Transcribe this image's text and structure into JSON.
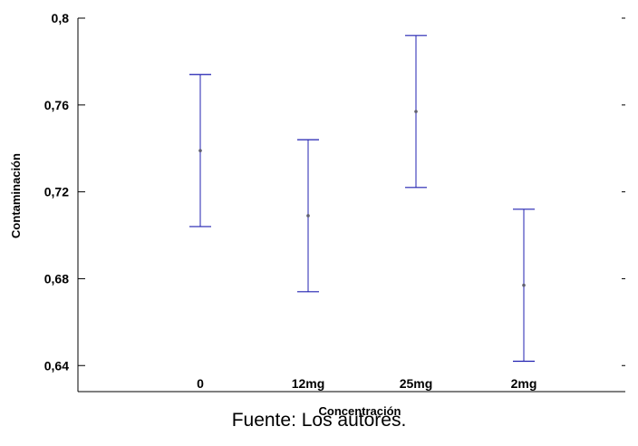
{
  "chart_data": {
    "type": "errorbar",
    "title": "",
    "xlabel": "Concentración",
    "ylabel": "Contaminación",
    "categories": [
      "0",
      "12mg",
      "25mg",
      "2mg"
    ],
    "series": [
      {
        "mean": [
          0.739,
          0.709,
          0.757,
          0.677
        ],
        "lower": [
          0.704,
          0.674,
          0.722,
          0.642
        ],
        "upper": [
          0.774,
          0.744,
          0.792,
          0.712
        ]
      }
    ],
    "yticks": [
      0.64,
      0.68,
      0.72,
      0.76,
      0.8
    ],
    "ytick_labels": [
      "0,64",
      "0,68",
      "0,72",
      "0,76",
      "0,8"
    ],
    "ylim": [
      0.628,
      0.8
    ],
    "grid": false,
    "colors": {
      "series": "#2020b0",
      "mean_marker": "#606070",
      "axis": "#000000"
    }
  },
  "caption": "Fuente: Los autores."
}
